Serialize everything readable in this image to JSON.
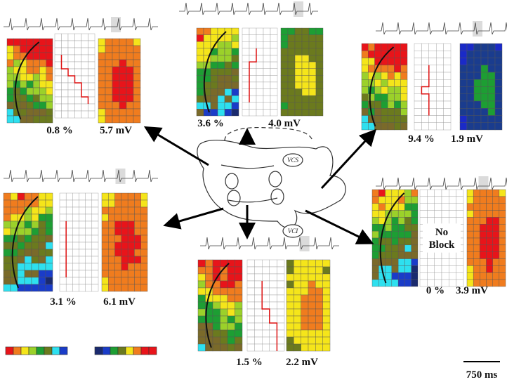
{
  "panels": [
    {
      "block": "0.8 %",
      "voltage": "5.7 mV"
    },
    {
      "block": "3.6 %",
      "voltage": "4.0 mV"
    },
    {
      "block": "9.4 %",
      "voltage": "1.9 mV"
    },
    {
      "block": "3.1 %",
      "voltage": "6.1 mV"
    },
    {
      "block": "1.5 %",
      "voltage": "2.2 mV"
    },
    {
      "block": "0 %",
      "voltage": "3.9 mV",
      "note": "No Block"
    }
  ],
  "diagram": {
    "upper_label": "VCS",
    "lower_label": "VCI"
  },
  "scale_bar": "750 ms"
}
